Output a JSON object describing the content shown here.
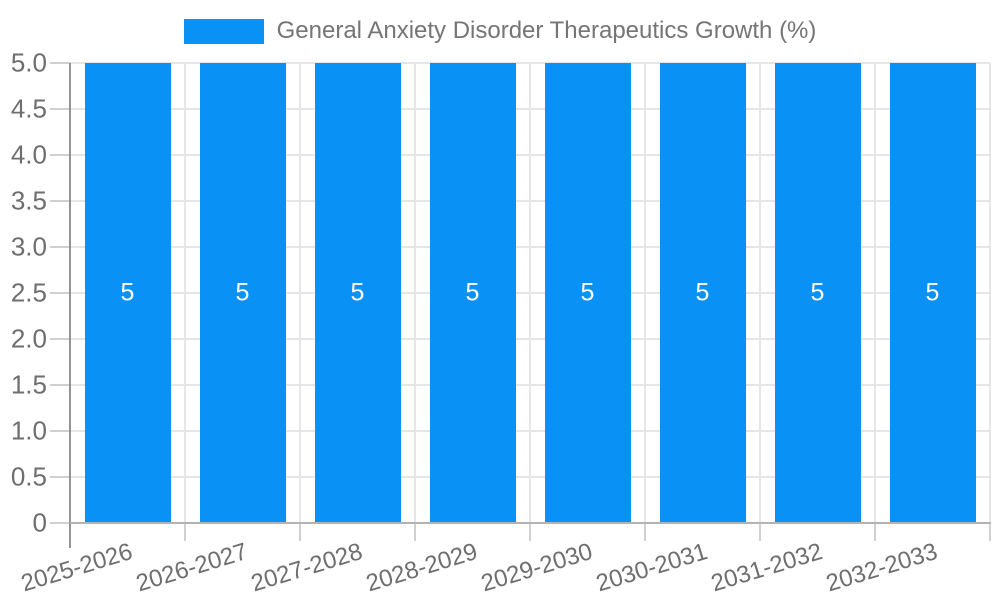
{
  "legend": {
    "label": "General Anxiety Disorder Therapeutics Growth (%)"
  },
  "chart_data": {
    "type": "bar",
    "title": "General Anxiety Disorder Therapeutics Growth (%)",
    "categories": [
      "2025-2026",
      "2026-2027",
      "2027-2028",
      "2028-2029",
      "2029-2030",
      "2030-2031",
      "2031-2032",
      "2032-2033"
    ],
    "series": [
      {
        "name": "General Anxiety Disorder Therapeutics Growth (%)",
        "values": [
          5,
          5,
          5,
          5,
          5,
          5,
          5,
          5
        ]
      }
    ],
    "bar_value_labels": [
      "5",
      "5",
      "5",
      "5",
      "5",
      "5",
      "5",
      "5"
    ],
    "xlabel": "",
    "ylabel": "",
    "ylim": [
      0,
      5
    ],
    "y_ticks_top_to_bottom": [
      "5.0",
      "4.5",
      "4.0",
      "3.5",
      "3.0",
      "2.5",
      "2.0",
      "1.5",
      "1.0",
      "0.5",
      "0"
    ],
    "grid": true,
    "legend_position": "top-center",
    "colors": {
      "bar": "#0A91F5",
      "bar_value_text": "#FFFFFF",
      "axis_text": "#6E6E6E",
      "legend_text": "#757575",
      "gridline": "#E6E6E6",
      "x_axis_line": "#B3B3B3",
      "y_axis_line": "#949494",
      "tick": "#D0D0D0"
    }
  }
}
